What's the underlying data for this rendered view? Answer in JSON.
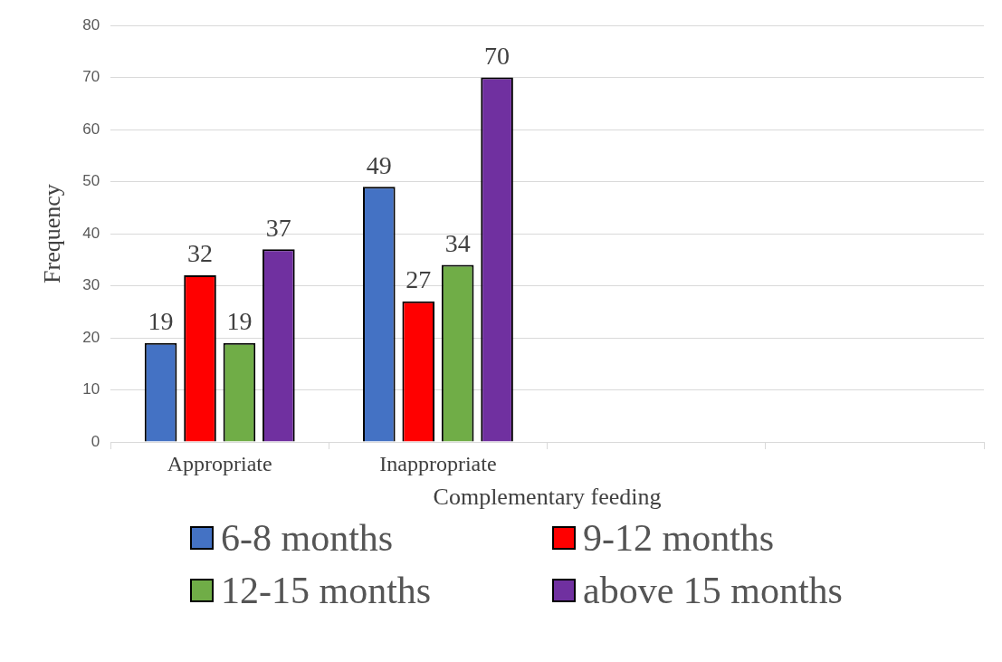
{
  "chart_data": {
    "type": "bar",
    "xlabel": "Complementary feeding",
    "ylabel": "Frequency",
    "categories": [
      "Appropriate",
      "Inappropriate",
      null,
      null
    ],
    "series": [
      {
        "name": "6-8 months",
        "color": "#4472c4",
        "values": [
          19,
          49,
          null,
          null
        ]
      },
      {
        "name": "9-12 months",
        "color": "#ff0000",
        "values": [
          32,
          27,
          null,
          null
        ]
      },
      {
        "name": "12-15 months",
        "color": "#70ad47",
        "values": [
          19,
          34,
          null,
          null
        ]
      },
      {
        "name": "above 15 months",
        "color": "#7030a0",
        "values": [
          37,
          70,
          null,
          null
        ]
      }
    ],
    "ylim": [
      0,
      80
    ],
    "yticks": [
      0,
      10,
      20,
      30,
      40,
      50,
      60,
      70,
      80
    ],
    "grid": "y",
    "legend": "bottom",
    "data_labels": true
  }
}
